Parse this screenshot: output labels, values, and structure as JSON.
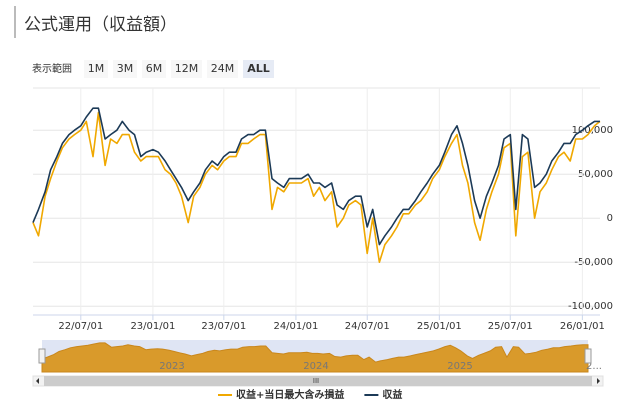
{
  "title": "公式運用（収益額）",
  "range_selector": {
    "label": "表示範囲",
    "buttons": [
      "1M",
      "3M",
      "6M",
      "12M",
      "24M",
      "ALL"
    ],
    "selected": "ALL"
  },
  "chart_data": {
    "type": "line",
    "x": [
      "22/03/01",
      "22/03/15",
      "22/04/01",
      "22/04/15",
      "22/05/01",
      "22/05/15",
      "22/06/01",
      "22/06/15",
      "22/07/01",
      "22/07/15",
      "22/08/01",
      "22/08/15",
      "22/09/01",
      "22/09/15",
      "22/10/01",
      "22/10/15",
      "22/11/01",
      "22/11/15",
      "22/12/01",
      "22/12/15",
      "23/01/01",
      "23/01/15",
      "23/02/01",
      "23/02/15",
      "23/03/01",
      "23/03/15",
      "23/04/01",
      "23/04/15",
      "23/05/01",
      "23/05/15",
      "23/06/01",
      "23/06/15",
      "23/07/01",
      "23/07/15",
      "23/08/01",
      "23/08/15",
      "23/09/01",
      "23/09/15",
      "23/10/01",
      "23/10/15",
      "23/11/01",
      "23/11/15",
      "23/12/01",
      "23/12/15",
      "24/01/01",
      "24/01/15",
      "24/02/01",
      "24/02/15",
      "24/03/01",
      "24/03/15",
      "24/04/01",
      "24/04/15",
      "24/05/01",
      "24/05/15",
      "24/06/01",
      "24/06/15",
      "24/07/01",
      "24/07/15",
      "24/08/01",
      "24/08/15",
      "24/09/01",
      "24/09/15",
      "24/10/01",
      "24/10/15",
      "24/11/01",
      "24/11/15",
      "24/12/01",
      "24/12/15",
      "25/01/01",
      "25/01/15",
      "25/02/01",
      "25/02/15",
      "25/03/01",
      "25/03/15",
      "25/04/01",
      "25/04/15",
      "25/05/01",
      "25/05/15",
      "25/06/01",
      "25/06/15",
      "25/07/01",
      "25/07/15",
      "25/08/01",
      "25/08/15",
      "25/09/01",
      "25/09/15",
      "25/10/01",
      "25/10/15",
      "25/11/01",
      "25/11/15",
      "25/12/01",
      "25/12/15",
      "26/01/01",
      "26/01/15",
      "26/02/01",
      "26/02/15"
    ],
    "series": [
      {
        "name": "収益+当日最大含み損益",
        "color": "#f0a800",
        "values": [
          -5000,
          -20000,
          25000,
          45000,
          65000,
          80000,
          90000,
          95000,
          100000,
          110000,
          70000,
          120000,
          60000,
          90000,
          85000,
          95000,
          95000,
          75000,
          65000,
          70000,
          70000,
          70000,
          55000,
          50000,
          40000,
          25000,
          -5000,
          25000,
          35000,
          50000,
          60000,
          55000,
          65000,
          70000,
          70000,
          85000,
          85000,
          90000,
          95000,
          95000,
          10000,
          35000,
          30000,
          40000,
          40000,
          40000,
          45000,
          25000,
          35000,
          20000,
          30000,
          -10000,
          0,
          15000,
          20000,
          15000,
          -40000,
          0,
          -50000,
          -30000,
          -20000,
          -10000,
          5000,
          5000,
          15000,
          20000,
          30000,
          45000,
          55000,
          70000,
          85000,
          95000,
          60000,
          40000,
          -5000,
          -25000,
          10000,
          30000,
          50000,
          80000,
          85000,
          -20000,
          70000,
          75000,
          0,
          30000,
          40000,
          55000,
          70000,
          75000,
          65000,
          90000,
          90000,
          95000,
          105000,
          110000
        ]
      },
      {
        "name": "収益",
        "color": "#1c3a57",
        "values": [
          -5000,
          10000,
          30000,
          55000,
          70000,
          85000,
          95000,
          100000,
          105000,
          115000,
          125000,
          125000,
          90000,
          95000,
          100000,
          110000,
          100000,
          95000,
          70000,
          75000,
          78000,
          75000,
          65000,
          55000,
          45000,
          35000,
          20000,
          30000,
          40000,
          55000,
          65000,
          60000,
          70000,
          75000,
          75000,
          90000,
          95000,
          95000,
          100000,
          100000,
          45000,
          40000,
          35000,
          45000,
          45000,
          45000,
          50000,
          40000,
          40000,
          35000,
          40000,
          15000,
          10000,
          20000,
          25000,
          25000,
          -10000,
          10000,
          -30000,
          -20000,
          -10000,
          0,
          10000,
          10000,
          20000,
          30000,
          40000,
          50000,
          60000,
          75000,
          95000,
          105000,
          85000,
          60000,
          20000,
          0,
          25000,
          40000,
          60000,
          90000,
          95000,
          10000,
          95000,
          90000,
          35000,
          40000,
          50000,
          65000,
          75000,
          85000,
          85000,
          95000,
          100000,
          105000,
          110000,
          110000
        ]
      }
    ],
    "xlim": [
      "22/03/01",
      "26/02/15"
    ],
    "xticks": [
      "22/07/01",
      "23/01/01",
      "23/07/01",
      "24/01/01",
      "24/07/01",
      "25/01/01",
      "25/07/01",
      "26/01/01"
    ],
    "ylim": [
      -110000,
      148000
    ],
    "yticks": [
      {
        "value": -100000,
        "label": "-100,000"
      },
      {
        "value": -50000,
        "label": "-50,000"
      },
      0,
      {
        "value": 50000,
        "label": "50,000"
      },
      {
        "value": 100000,
        "label": "100,000"
      }
    ],
    "grid": true,
    "legend": "bottom",
    "navigator": {
      "labels": [
        "2023",
        "2024",
        "2025",
        "2..."
      ],
      "scrollbar_label": "III"
    }
  }
}
